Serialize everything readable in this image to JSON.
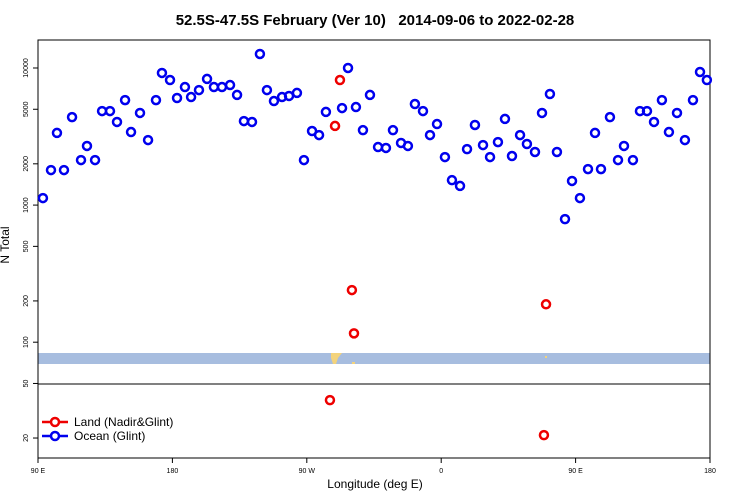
{
  "chart_data": {
    "type": "scatter",
    "title": "52.5S-47.5S February (Ver 10)   2014-09-06 to 2022-02-28",
    "x_label": "Longitude (deg E)",
    "y_label": "N Total",
    "log_y": true,
    "legend": "bottom-left",
    "xlim": [
      90,
      540
    ],
    "ylim": [
      14.3,
      16000
    ],
    "xticks": [
      {
        "value": 90,
        "label": "90 E"
      },
      180,
      {
        "value": 270,
        "label": "90 W"
      },
      {
        "value": 360,
        "label": "0"
      },
      {
        "value": 450,
        "label": "90 E"
      },
      {
        "value": 540,
        "label": "180"
      }
    ],
    "yticks": [
      20,
      50,
      100,
      200,
      500,
      1000,
      2000,
      5000,
      10000
    ],
    "series": [
      {
        "name": "Land (Nadir&Glint)",
        "color": "#ee0000",
        "x": [
          292.2,
          288.9,
          300.2,
          301.6,
          430.2,
          285.5,
          428.8
        ],
        "values": [
          8170,
          3780,
          240,
          116,
          189,
          37.8,
          21
        ]
      },
      {
        "name": "Ocean (Glint)",
        "color": "#0000ee",
        "x": [
          93.3,
          98.7,
          107.4,
          102.7,
          112.8,
          118.8,
          122.8,
          128.2,
          132.9,
          138.2,
          142.9,
          148.3,
          152.3,
          158.3,
          163.7,
          169.0,
          173.0,
          178.4,
          183.1,
          188.4,
          192.5,
          197.8,
          203.2,
          207.8,
          213.2,
          218.6,
          223.3,
          227.9,
          233.3,
          238.6,
          243.3,
          248.0,
          253.4,
          258.1,
          263.4,
          268.1,
          273.5,
          278.2,
          282.8,
          293.6,
          297.6,
          302.9,
          307.6,
          312.3,
          317.7,
          323.0,
          327.7,
          333.1,
          337.7,
          342.4,
          347.8,
          352.5,
          357.2,
          362.5,
          367.2,
          372.6,
          377.3,
          382.6,
          388.0,
          392.7,
          398.0,
          402.7,
          407.4,
          412.8,
          417.4,
          422.8,
          427.5,
          432.8,
          437.5,
          442.9,
          447.6,
          452.9,
          458.3,
          463.0,
          467.0,
          473.0,
          478.4,
          482.4,
          488.4,
          493.1,
          497.8,
          502.5,
          507.8,
          512.5,
          517.9,
          523.2,
          528.6,
          533.3,
          537.9
        ],
        "values": [
          1125,
          1800,
          1800,
          3360,
          4380,
          2130,
          2700,
          2130,
          4850,
          4850,
          4040,
          5830,
          3410,
          4700,
          2980,
          5830,
          9200,
          8170,
          6040,
          7260,
          6140,
          6900,
          8320,
          7260,
          7260,
          7510,
          6360,
          4100,
          4040,
          12650,
          6900,
          5740,
          6140,
          6250,
          6580,
          2130,
          3470,
          3240,
          4780,
          5100,
          10000,
          5190,
          3520,
          6360,
          2650,
          2610,
          3520,
          2840,
          2700,
          5460,
          4850,
          3240,
          3900,
          2240,
          1520,
          1380,
          2560,
          3840,
          2740,
          2240,
          2880,
          4250,
          2280,
          3240,
          2790,
          2440,
          4700,
          6460,
          2440,
          790,
          1500,
          1125,
          1830,
          3360,
          1830,
          4380,
          2130,
          2700,
          2130,
          4850,
          4850,
          4040,
          5830,
          3410,
          4700,
          2980,
          5830,
          9350,
          8170
        ]
      }
    ]
  }
}
